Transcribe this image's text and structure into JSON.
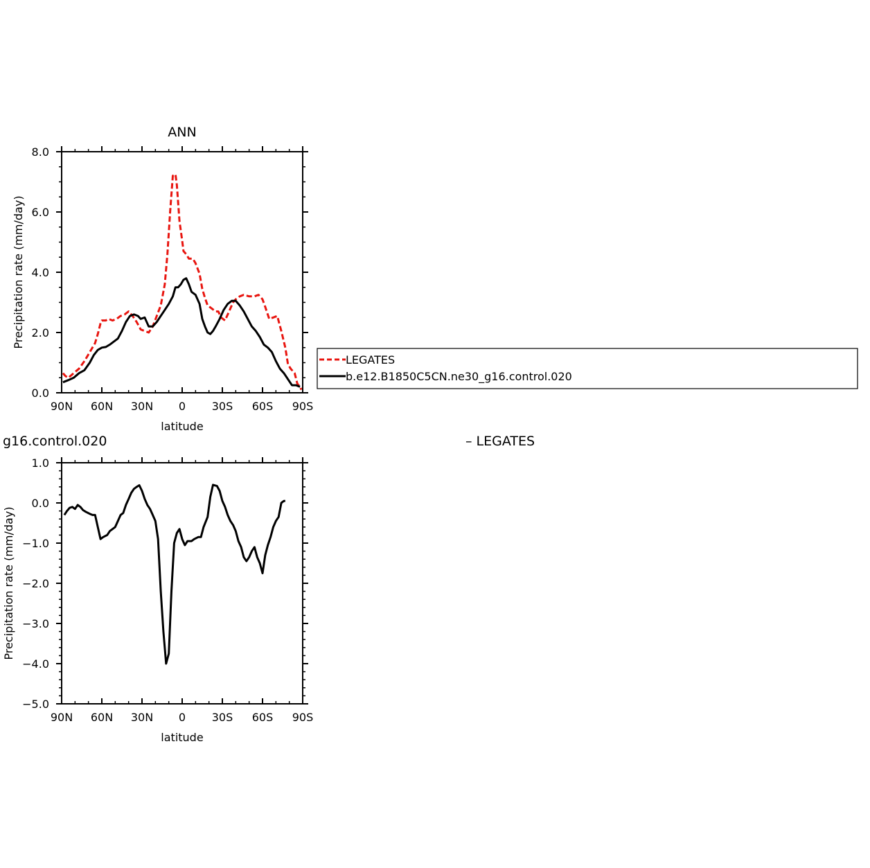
{
  "chart_data": [
    {
      "type": "line",
      "title": "ANN",
      "xlabel": "latitude",
      "ylabel": "Precipitation rate (mm/day)",
      "xlim": [
        -90,
        90
      ],
      "ylim": [
        0,
        8
      ],
      "x_tick_values": [
        -90,
        -60,
        -30,
        0,
        30,
        60,
        90
      ],
      "x_tick_labels": [
        "90N",
        "60N",
        "30N",
        "0",
        "30S",
        "60S",
        "90S"
      ],
      "y_tick_values": [
        0,
        2,
        4,
        6,
        8
      ],
      "y_tick_labels": [
        "0.0",
        "2.0",
        "4.0",
        "6.0",
        "8.0"
      ],
      "legend": {
        "placement": "right",
        "entries": [
          "LEGATES",
          "b.e12.B1850C5CN.ne30_g16.control.020"
        ]
      },
      "series": [
        {
          "name": "LEGATES",
          "color": "#e8150f",
          "style": "dashed",
          "points": [
            [
              -89,
              0.65
            ],
            [
              -87,
              0.55
            ],
            [
              -85,
              0.5
            ],
            [
              -81,
              0.65
            ],
            [
              -77,
              0.8
            ],
            [
              -73,
              1.05
            ],
            [
              -69,
              1.35
            ],
            [
              -65,
              1.65
            ],
            [
              -63,
              1.95
            ],
            [
              -61,
              2.3
            ],
            [
              -60,
              2.4
            ],
            [
              -57,
              2.4
            ],
            [
              -55,
              2.45
            ],
            [
              -52,
              2.4
            ],
            [
              -49,
              2.45
            ],
            [
              -46,
              2.55
            ],
            [
              -43,
              2.6
            ],
            [
              -40,
              2.7
            ],
            [
              -37,
              2.55
            ],
            [
              -34,
              2.35
            ],
            [
              -31,
              2.1
            ],
            [
              -28,
              2.05
            ],
            [
              -25,
              2.0
            ],
            [
              -22,
              2.2
            ],
            [
              -19,
              2.55
            ],
            [
              -16,
              2.9
            ],
            [
              -13,
              3.6
            ],
            [
              -11,
              4.6
            ],
            [
              -9,
              6.0
            ],
            [
              -7,
              7.2
            ],
            [
              -5,
              7.25
            ],
            [
              -4,
              6.9
            ],
            [
              -2,
              5.7
            ],
            [
              0,
              5.05
            ],
            [
              1,
              4.7
            ],
            [
              3,
              4.6
            ],
            [
              5,
              4.45
            ],
            [
              8,
              4.45
            ],
            [
              10,
              4.3
            ],
            [
              13,
              3.95
            ],
            [
              15,
              3.45
            ],
            [
              17,
              3.15
            ],
            [
              19,
              2.9
            ],
            [
              22,
              2.8
            ],
            [
              25,
              2.7
            ],
            [
              27,
              2.7
            ],
            [
              29,
              2.5
            ],
            [
              32,
              2.4
            ],
            [
              35,
              2.7
            ],
            [
              38,
              3.0
            ],
            [
              40,
              3.1
            ],
            [
              43,
              3.2
            ],
            [
              46,
              3.25
            ],
            [
              50,
              3.2
            ],
            [
              54,
              3.2
            ],
            [
              57,
              3.25
            ],
            [
              60,
              3.1
            ],
            [
              62,
              2.85
            ],
            [
              65,
              2.45
            ],
            [
              68,
              2.5
            ],
            [
              71,
              2.55
            ],
            [
              74,
              2.05
            ],
            [
              77,
              1.5
            ],
            [
              79,
              0.95
            ],
            [
              81,
              0.8
            ],
            [
              84,
              0.65
            ],
            [
              86,
              0.3
            ],
            [
              88,
              0.2
            ],
            [
              89,
              0.1
            ]
          ]
        },
        {
          "name": "b.e12.B1850C5CN.ne30_g16.control.020",
          "color": "#000000",
          "style": "solid",
          "points": [
            [
              -89,
              0.35
            ],
            [
              -85,
              0.42
            ],
            [
              -81,
              0.5
            ],
            [
              -77,
              0.65
            ],
            [
              -73,
              0.75
            ],
            [
              -69,
              1.0
            ],
            [
              -66,
              1.25
            ],
            [
              -63,
              1.42
            ],
            [
              -60,
              1.5
            ],
            [
              -57,
              1.52
            ],
            [
              -54,
              1.6
            ],
            [
              -51,
              1.7
            ],
            [
              -48,
              1.8
            ],
            [
              -45,
              2.05
            ],
            [
              -42,
              2.35
            ],
            [
              -39,
              2.55
            ],
            [
              -36,
              2.6
            ],
            [
              -33,
              2.55
            ],
            [
              -31,
              2.45
            ],
            [
              -28,
              2.5
            ],
            [
              -25,
              2.2
            ],
            [
              -22,
              2.2
            ],
            [
              -19,
              2.35
            ],
            [
              -16,
              2.55
            ],
            [
              -13,
              2.75
            ],
            [
              -10,
              2.95
            ],
            [
              -7,
              3.2
            ],
            [
              -5,
              3.5
            ],
            [
              -3,
              3.5
            ],
            [
              -1,
              3.6
            ],
            [
              1,
              3.75
            ],
            [
              3,
              3.8
            ],
            [
              5,
              3.6
            ],
            [
              7,
              3.35
            ],
            [
              10,
              3.25
            ],
            [
              13,
              2.95
            ],
            [
              15,
              2.45
            ],
            [
              17,
              2.2
            ],
            [
              19,
              2.0
            ],
            [
              21,
              1.95
            ],
            [
              23,
              2.05
            ],
            [
              25,
              2.2
            ],
            [
              28,
              2.45
            ],
            [
              31,
              2.75
            ],
            [
              34,
              2.95
            ],
            [
              37,
              3.05
            ],
            [
              40,
              3.05
            ],
            [
              43,
              2.9
            ],
            [
              46,
              2.7
            ],
            [
              49,
              2.45
            ],
            [
              52,
              2.2
            ],
            [
              55,
              2.05
            ],
            [
              58,
              1.85
            ],
            [
              61,
              1.6
            ],
            [
              64,
              1.5
            ],
            [
              67,
              1.35
            ],
            [
              70,
              1.05
            ],
            [
              73,
              0.8
            ],
            [
              76,
              0.65
            ],
            [
              79,
              0.45
            ],
            [
              82,
              0.25
            ],
            [
              85,
              0.25
            ],
            [
              88,
              0.2
            ]
          ]
        }
      ]
    },
    {
      "type": "line",
      "title": "g16.control.020",
      "title2": "– LEGATES",
      "xlabel": "latitude",
      "ylabel": "Precipitation rate (mm/day)",
      "xlim": [
        -90,
        90
      ],
      "ylim": [
        -5,
        1
      ],
      "x_tick_values": [
        -90,
        -60,
        -30,
        0,
        30,
        60,
        90
      ],
      "x_tick_labels": [
        "90N",
        "60N",
        "30N",
        "0",
        "30S",
        "60S",
        "90S"
      ],
      "y_tick_values": [
        -5,
        -4,
        -3,
        -2,
        -1,
        0,
        1
      ],
      "y_tick_labels": [
        "−5.0",
        "−4.0",
        "−3.0",
        "−2.0",
        "−1.0",
        "0.0",
        "1.0"
      ],
      "series": [
        {
          "color": "#000000",
          "style": "solid",
          "points": [
            [
              -88,
              -0.3
            ],
            [
              -86,
              -0.2
            ],
            [
              -84,
              -0.12
            ],
            [
              -82,
              -0.1
            ],
            [
              -80,
              -0.15
            ],
            [
              -78,
              -0.05
            ],
            [
              -76,
              -0.1
            ],
            [
              -74,
              -0.18
            ],
            [
              -72,
              -0.22
            ],
            [
              -69,
              -0.27
            ],
            [
              -67,
              -0.3
            ],
            [
              -65,
              -0.3
            ],
            [
              -63,
              -0.6
            ],
            [
              -61,
              -0.9
            ],
            [
              -59,
              -0.85
            ],
            [
              -56,
              -0.8
            ],
            [
              -54,
              -0.7
            ],
            [
              -52,
              -0.65
            ],
            [
              -50,
              -0.6
            ],
            [
              -48,
              -0.45
            ],
            [
              -46,
              -0.3
            ],
            [
              -44,
              -0.25
            ],
            [
              -42,
              -0.05
            ],
            [
              -40,
              0.1
            ],
            [
              -38,
              0.25
            ],
            [
              -36,
              0.35
            ],
            [
              -34,
              0.4
            ],
            [
              -32,
              0.44
            ],
            [
              -30,
              0.3
            ],
            [
              -28,
              0.1
            ],
            [
              -26,
              -0.05
            ],
            [
              -24,
              -0.15
            ],
            [
              -22,
              -0.3
            ],
            [
              -20,
              -0.45
            ],
            [
              -18,
              -0.9
            ],
            [
              -16,
              -2.2
            ],
            [
              -14,
              -3.2
            ],
            [
              -12,
              -4.0
            ],
            [
              -10,
              -3.75
            ],
            [
              -8,
              -2.2
            ],
            [
              -6,
              -1.0
            ],
            [
              -4,
              -0.75
            ],
            [
              -2,
              -0.65
            ],
            [
              0,
              -0.9
            ],
            [
              2,
              -1.05
            ],
            [
              4,
              -0.95
            ],
            [
              7,
              -0.95
            ],
            [
              9,
              -0.9
            ],
            [
              12,
              -0.85
            ],
            [
              14,
              -0.85
            ],
            [
              16,
              -0.6
            ],
            [
              19,
              -0.35
            ],
            [
              21,
              0.15
            ],
            [
              23,
              0.45
            ],
            [
              26,
              0.42
            ],
            [
              28,
              0.3
            ],
            [
              30,
              0.05
            ],
            [
              32,
              -0.1
            ],
            [
              34,
              -0.3
            ],
            [
              36,
              -0.45
            ],
            [
              38,
              -0.55
            ],
            [
              40,
              -0.7
            ],
            [
              42,
              -0.95
            ],
            [
              44,
              -1.1
            ],
            [
              46,
              -1.35
            ],
            [
              48,
              -1.45
            ],
            [
              50,
              -1.35
            ],
            [
              52,
              -1.2
            ],
            [
              54,
              -1.1
            ],
            [
              56,
              -1.35
            ],
            [
              58,
              -1.5
            ],
            [
              60,
              -1.75
            ],
            [
              62,
              -1.3
            ],
            [
              64,
              -1.05
            ],
            [
              66,
              -0.85
            ],
            [
              68,
              -0.6
            ],
            [
              70,
              -0.45
            ],
            [
              72,
              -0.35
            ],
            [
              74,
              0.0
            ],
            [
              76,
              0.05
            ],
            [
              77,
              0.05
            ]
          ]
        }
      ]
    }
  ]
}
